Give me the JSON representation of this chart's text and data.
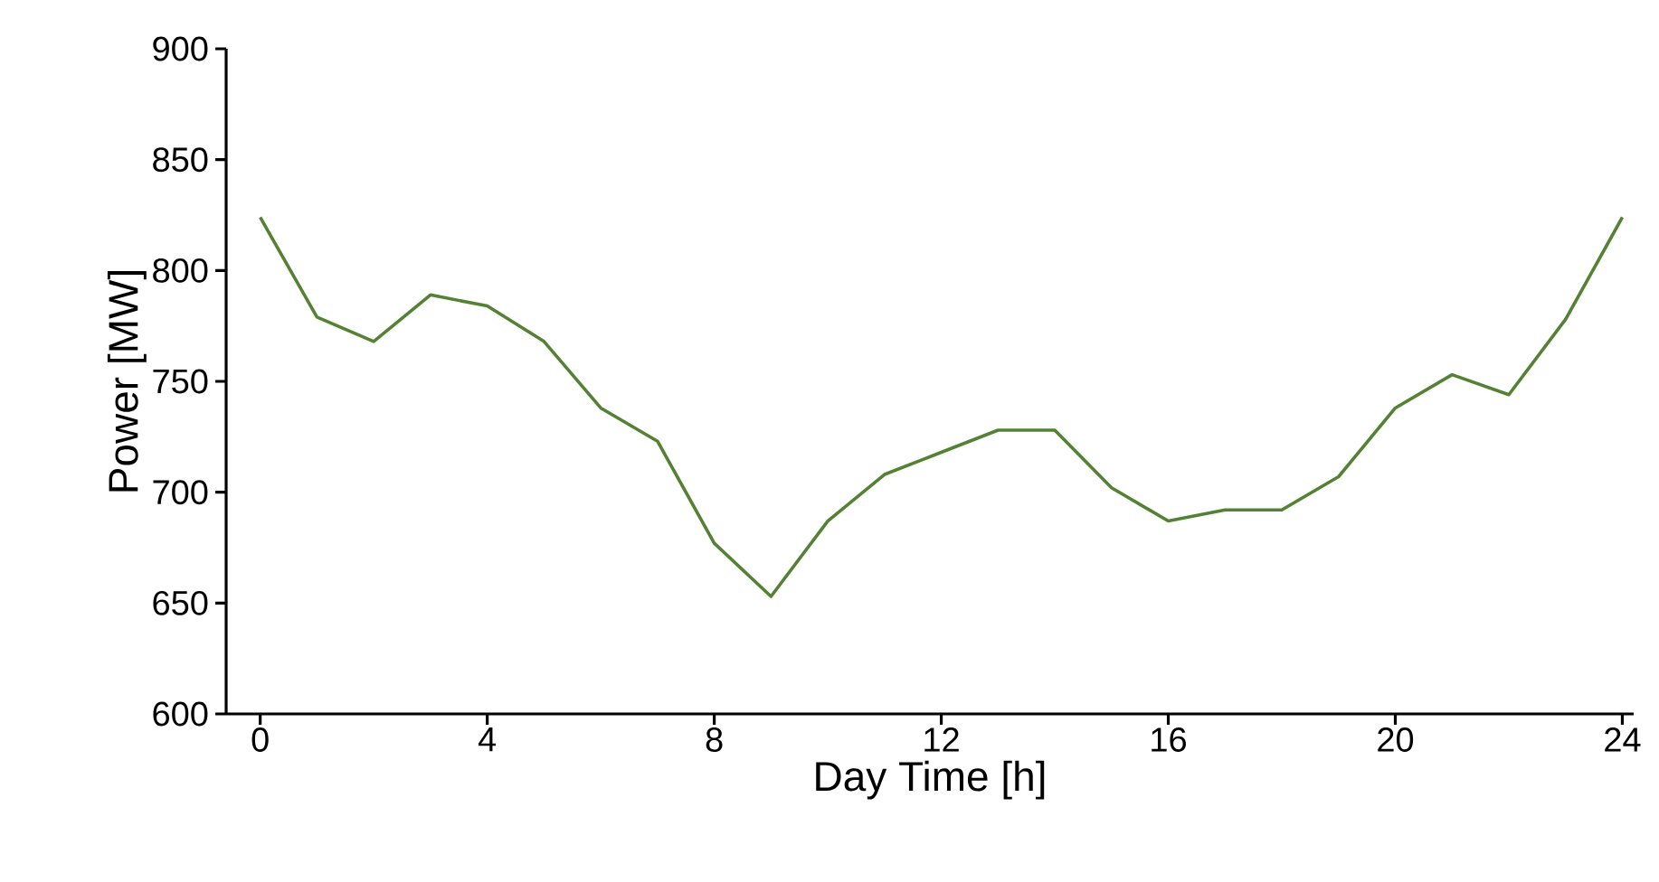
{
  "chart_data": {
    "type": "line",
    "xlabel": "Day Time [h]",
    "ylabel": "Power [MW]",
    "x": [
      0,
      1,
      2,
      3,
      4,
      5,
      6,
      7,
      8,
      9,
      10,
      11,
      12,
      13,
      14,
      15,
      16,
      17,
      18,
      19,
      20,
      21,
      22,
      23,
      24
    ],
    "series": [
      {
        "color": "#548235",
        "values": [
          824,
          779,
          768,
          789,
          784,
          768,
          738,
          723,
          677,
          653,
          687,
          708,
          718,
          728,
          728,
          702,
          687,
          692,
          692,
          707,
          738,
          753,
          744,
          778,
          824
        ]
      }
    ],
    "xlim": [
      -0.6,
      24.2
    ],
    "xticks": [
      0,
      4,
      8,
      12,
      16,
      20,
      24
    ],
    "ylim": [
      600,
      900
    ],
    "yticks": [
      600,
      650,
      700,
      750,
      800,
      850,
      900
    ],
    "marker": "none",
    "line_style": "solid",
    "grid": false
  }
}
